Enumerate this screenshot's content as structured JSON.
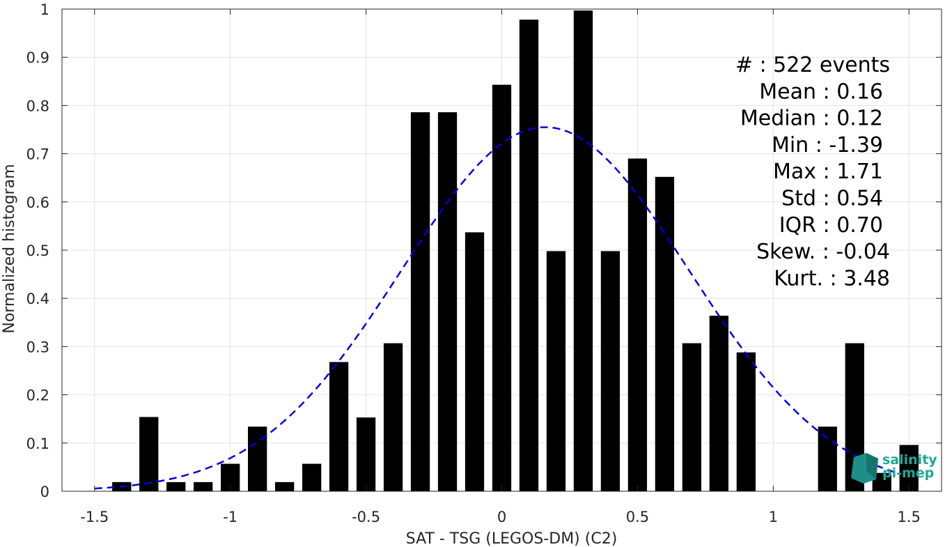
{
  "chart_data": {
    "type": "bar",
    "xlabel": "SAT - TSG (LEGOS-DM) (C2)",
    "ylabel": "Normalized histogram",
    "xlim": [
      -1.62,
      1.62
    ],
    "ylim": [
      0,
      1
    ],
    "grid": true,
    "x_ticks": [
      -1.5,
      -1,
      -0.5,
      0,
      0.5,
      1,
      1.5
    ],
    "x_tick_labels": [
      "-1.5",
      "-1",
      "-0.5",
      "0",
      "0.5",
      "1",
      "1.5"
    ],
    "y_ticks": [
      0,
      0.1,
      0.2,
      0.3,
      0.4,
      0.5,
      0.6,
      0.7,
      0.8,
      0.9,
      1
    ],
    "y_tick_labels": [
      "0",
      "0.1",
      "0.2",
      "0.3",
      "0.4",
      "0.5",
      "0.6",
      "0.7",
      "0.8",
      "0.9",
      "1"
    ],
    "bar_width": 0.07,
    "bar_color": "#000000",
    "bars": [
      {
        "x": -1.4,
        "y": 0.019
      },
      {
        "x": -1.3,
        "y": 0.154
      },
      {
        "x": -1.2,
        "y": 0.019
      },
      {
        "x": -1.1,
        "y": 0.019
      },
      {
        "x": -1.0,
        "y": 0.057
      },
      {
        "x": -0.9,
        "y": 0.134
      },
      {
        "x": -0.8,
        "y": 0.019
      },
      {
        "x": -0.7,
        "y": 0.057
      },
      {
        "x": -0.6,
        "y": 0.268
      },
      {
        "x": -0.5,
        "y": 0.153
      },
      {
        "x": -0.4,
        "y": 0.307
      },
      {
        "x": -0.3,
        "y": 0.786
      },
      {
        "x": -0.2,
        "y": 0.786
      },
      {
        "x": -0.1,
        "y": 0.537
      },
      {
        "x": 0.0,
        "y": 0.843
      },
      {
        "x": 0.1,
        "y": 0.978
      },
      {
        "x": 0.2,
        "y": 0.498
      },
      {
        "x": 0.3,
        "y": 0.997
      },
      {
        "x": 0.4,
        "y": 0.498
      },
      {
        "x": 0.5,
        "y": 0.69
      },
      {
        "x": 0.6,
        "y": 0.652
      },
      {
        "x": 0.7,
        "y": 0.307
      },
      {
        "x": 0.8,
        "y": 0.364
      },
      {
        "x": 0.9,
        "y": 0.288
      },
      {
        "x": 1.2,
        "y": 0.134
      },
      {
        "x": 1.3,
        "y": 0.307
      },
      {
        "x": 1.4,
        "y": 0.038
      },
      {
        "x": 1.5,
        "y": 0.096
      }
    ],
    "fit_curve": {
      "style": "dashed",
      "color": "#0000dd",
      "mean": 0.16,
      "std": 0.53,
      "peak": 0.755,
      "x_range": [
        -1.5,
        1.45
      ]
    },
    "stats": [
      {
        "label": "#  : 522 events"
      },
      {
        "label": "Mean : 0.16"
      },
      {
        "label": "Median : 0.12"
      },
      {
        "label": "Min : -1.39"
      },
      {
        "label": "Max : 1.71"
      },
      {
        "label": "Std : 0.54"
      },
      {
        "label": "IQR : 0.70"
      },
      {
        "label": "Skew. : -0.04"
      },
      {
        "label": "Kurt. : 3.48"
      }
    ]
  },
  "logo": {
    "line1": "salinity",
    "line2": "pi-mep",
    "color": "#1fa896"
  }
}
